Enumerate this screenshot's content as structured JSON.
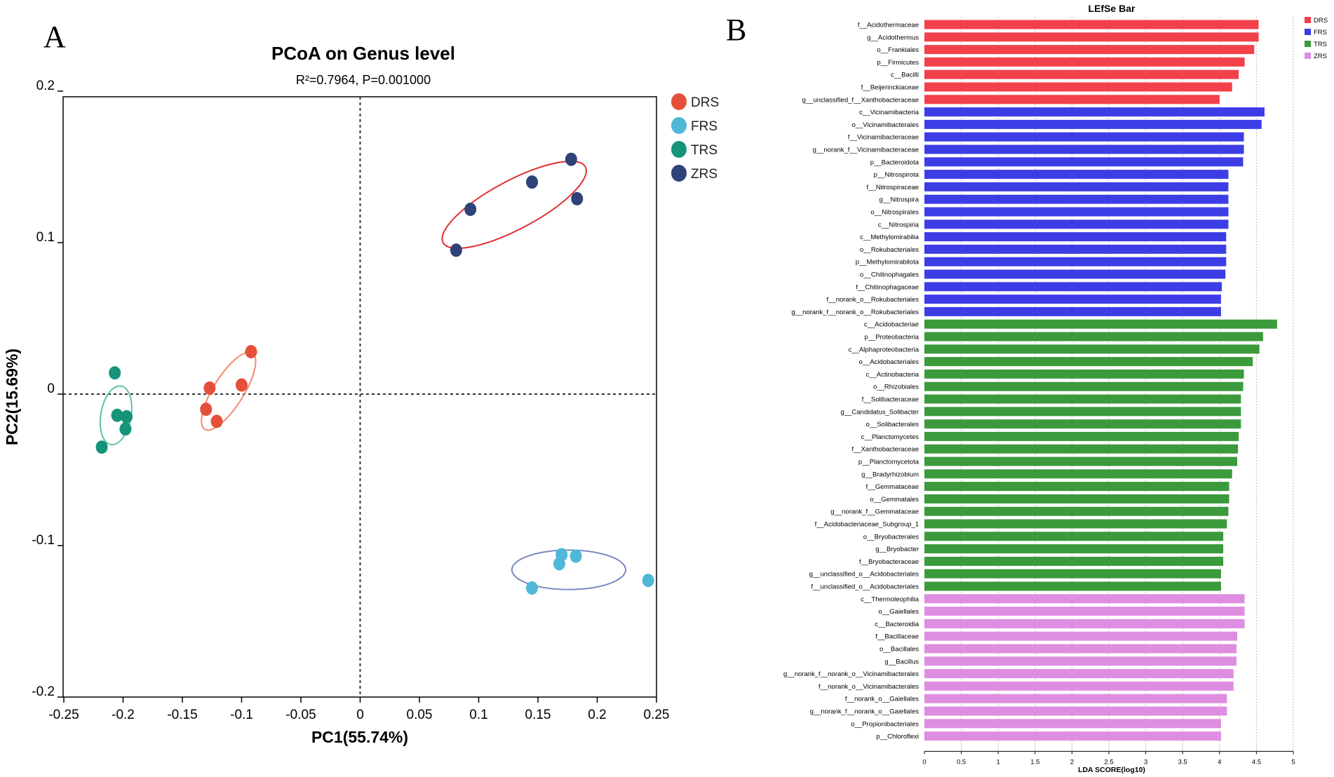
{
  "figure": {
    "panel_a_letter": "A",
    "panel_b_letter": "B"
  },
  "chart_data": [
    {
      "type": "scatter",
      "title": "PCoA on Genus level",
      "subtitle": "R²=0.7964, P=0.001000",
      "xlabel": "PC1(55.74%)",
      "ylabel": "PC2(15.69%)",
      "xlim": [
        -0.25,
        0.25
      ],
      "ylim": [
        -0.2,
        0.2
      ],
      "xticks": [
        -0.25,
        -0.2,
        -0.15,
        -0.1,
        -0.05,
        0,
        0.05,
        0.1,
        0.15,
        0.2,
        0.25
      ],
      "xtick_labels": [
        "-0.25",
        "-0.2",
        "-0.15",
        "-0.1",
        "-0.05",
        "0",
        "0.05",
        "0.1",
        "0.15",
        "0.2",
        "0.25"
      ],
      "yticks": [
        0.2,
        0.1,
        0,
        -0.1,
        -0.2
      ],
      "ytick_labels": [
        "0.2",
        "0.1",
        "0",
        "-0.1",
        "-0.2"
      ],
      "zero_lines": true,
      "legend_position": "top-right outside",
      "series": [
        {
          "name": "DRS",
          "color": "#e5503a",
          "points": [
            [
              -0.092,
              0.028
            ],
            [
              -0.1,
              0.006
            ],
            [
              -0.127,
              0.004
            ],
            [
              -0.13,
              -0.01
            ],
            [
              -0.121,
              -0.018
            ]
          ],
          "ellipse": {
            "cx": -0.111,
            "cy": 0.002,
            "rx": 0.038,
            "ry": 0.01,
            "angle_deg": -58,
            "color": "#f08a6e"
          }
        },
        {
          "name": "FRS",
          "color": "#4fb8d8",
          "points": [
            [
              0.17,
              -0.106
            ],
            [
              0.182,
              -0.107
            ],
            [
              0.168,
              -0.112
            ],
            [
              0.145,
              -0.128
            ],
            [
              0.243,
              -0.123
            ]
          ],
          "ellipse": {
            "cx": 0.176,
            "cy": -0.116,
            "rx": 0.048,
            "ry": 0.013,
            "angle_deg": 0,
            "color": "#7b88c2"
          }
        },
        {
          "name": "TRS",
          "color": "#16947a",
          "points": [
            [
              -0.207,
              0.014
            ],
            [
              -0.205,
              -0.014
            ],
            [
              -0.197,
              -0.015
            ],
            [
              -0.198,
              -0.023
            ],
            [
              -0.218,
              -0.035
            ]
          ],
          "ellipse": {
            "cx": -0.206,
            "cy": -0.014,
            "rx": 0.025,
            "ry": 0.01,
            "angle_deg": -80,
            "color": "#5ec2a0"
          }
        },
        {
          "name": "ZRS",
          "color": "#2e4377",
          "points": [
            [
              0.178,
              0.155
            ],
            [
              0.145,
              0.14
            ],
            [
              0.183,
              0.129
            ],
            [
              0.093,
              0.122
            ],
            [
              0.081,
              0.095
            ]
          ],
          "ellipse": {
            "cx": 0.13,
            "cy": 0.125,
            "rx": 0.068,
            "ry": 0.016,
            "angle_deg": -28,
            "color": "#e03030"
          }
        }
      ]
    },
    {
      "type": "bar",
      "orientation": "horizontal",
      "title": "LEfSe Bar",
      "xlabel": "LDA SCORE(log10)",
      "xlim": [
        0,
        5
      ],
      "xticks": [
        0,
        0.5,
        1,
        1.5,
        2,
        2.5,
        3,
        3.5,
        4,
        4.5,
        5
      ],
      "xtick_labels": [
        "0",
        "0.5",
        "1",
        "1.5",
        "2",
        "2.5",
        "3",
        "3.5",
        "4",
        "4.5",
        "5"
      ],
      "grid": "vertical dotted",
      "legend_position": "top-right",
      "groups": [
        {
          "name": "DRS",
          "color": "#f2414b"
        },
        {
          "name": "FRS",
          "color": "#3d3de6"
        },
        {
          "name": "TRS",
          "color": "#3b9a3b"
        },
        {
          "name": "ZRS",
          "color": "#dd8ee0"
        }
      ],
      "bars": [
        {
          "label": "f__Acidothermaceae",
          "value": 4.53,
          "group": "DRS"
        },
        {
          "label": "g__Acidothermus",
          "value": 4.53,
          "group": "DRS"
        },
        {
          "label": "o__Frankiales",
          "value": 4.47,
          "group": "DRS"
        },
        {
          "label": "p__Firmicutes",
          "value": 4.34,
          "group": "DRS"
        },
        {
          "label": "c__Bacilli",
          "value": 4.26,
          "group": "DRS"
        },
        {
          "label": "f__Beijerinckiaceae",
          "value": 4.17,
          "group": "DRS"
        },
        {
          "label": "g__unclassified_f__Xanthobacteraceae",
          "value": 4.0,
          "group": "DRS"
        },
        {
          "label": "c__Vicinamibacteria",
          "value": 4.61,
          "group": "FRS"
        },
        {
          "label": "o__Vicinamibacterales",
          "value": 4.57,
          "group": "FRS"
        },
        {
          "label": "f__Vicinamibacteraceae",
          "value": 4.33,
          "group": "FRS"
        },
        {
          "label": "g__norank_f__Vicinamibacteraceae",
          "value": 4.33,
          "group": "FRS"
        },
        {
          "label": "p__Bacteroidota",
          "value": 4.32,
          "group": "FRS"
        },
        {
          "label": "p__Nitrospirota",
          "value": 4.12,
          "group": "FRS"
        },
        {
          "label": "f__Nitrospiraceae",
          "value": 4.12,
          "group": "FRS"
        },
        {
          "label": "g__Nitrospira",
          "value": 4.12,
          "group": "FRS"
        },
        {
          "label": "o__Nitrospirales",
          "value": 4.12,
          "group": "FRS"
        },
        {
          "label": "c__Nitrospiria",
          "value": 4.12,
          "group": "FRS"
        },
        {
          "label": "c__Methylomirabilia",
          "value": 4.09,
          "group": "FRS"
        },
        {
          "label": "o__Rokubacteriales",
          "value": 4.09,
          "group": "FRS"
        },
        {
          "label": "p__Methylomirabilota",
          "value": 4.09,
          "group": "FRS"
        },
        {
          "label": "o__Chitinophagales",
          "value": 4.08,
          "group": "FRS"
        },
        {
          "label": "f__Chitinophagaceae",
          "value": 4.03,
          "group": "FRS"
        },
        {
          "label": "f__norank_o__Rokubacteriales",
          "value": 4.02,
          "group": "FRS"
        },
        {
          "label": "g__norank_f__norank_o__Rokubacteriales",
          "value": 4.02,
          "group": "FRS"
        },
        {
          "label": "c__Acidobacteriae",
          "value": 4.78,
          "group": "TRS"
        },
        {
          "label": "p__Proteobacteria",
          "value": 4.59,
          "group": "TRS"
        },
        {
          "label": "c__Alphaproteobacteria",
          "value": 4.54,
          "group": "TRS"
        },
        {
          "label": "o__Acidobacteriales",
          "value": 4.45,
          "group": "TRS"
        },
        {
          "label": "c__Actinobacteria",
          "value": 4.33,
          "group": "TRS"
        },
        {
          "label": "o__Rhizobiales",
          "value": 4.32,
          "group": "TRS"
        },
        {
          "label": "f__Solibacteraceae",
          "value": 4.29,
          "group": "TRS"
        },
        {
          "label": "g__Candidatus_Solibacter",
          "value": 4.29,
          "group": "TRS"
        },
        {
          "label": "o__Solibacterales",
          "value": 4.29,
          "group": "TRS"
        },
        {
          "label": "c__Planctomycetes",
          "value": 4.26,
          "group": "TRS"
        },
        {
          "label": "f__Xanthobacteraceae",
          "value": 4.25,
          "group": "TRS"
        },
        {
          "label": "p__Planctomycetota",
          "value": 4.24,
          "group": "TRS"
        },
        {
          "label": "g__Bradyrhizobium",
          "value": 4.17,
          "group": "TRS"
        },
        {
          "label": "f__Gemmataceae",
          "value": 4.13,
          "group": "TRS"
        },
        {
          "label": "o__Gemmatales",
          "value": 4.13,
          "group": "TRS"
        },
        {
          "label": "g__norank_f__Gemmataceae",
          "value": 4.12,
          "group": "TRS"
        },
        {
          "label": "f__Acidobacteriaceae_Subgroup_1",
          "value": 4.1,
          "group": "TRS"
        },
        {
          "label": "o__Bryobacterales",
          "value": 4.05,
          "group": "TRS"
        },
        {
          "label": "g__Bryobacter",
          "value": 4.05,
          "group": "TRS"
        },
        {
          "label": "f__Bryobacteraceae",
          "value": 4.05,
          "group": "TRS"
        },
        {
          "label": "g__unclassified_o__Acidobacteriales",
          "value": 4.02,
          "group": "TRS"
        },
        {
          "label": "f__unclassified_o__Acidobacteriales",
          "value": 4.02,
          "group": "TRS"
        },
        {
          "label": "c__Thermoleophilia",
          "value": 4.34,
          "group": "ZRS"
        },
        {
          "label": "o__Gaiellales",
          "value": 4.34,
          "group": "ZRS"
        },
        {
          "label": "c__Bacteroidia",
          "value": 4.34,
          "group": "ZRS"
        },
        {
          "label": "f__Bacillaceae",
          "value": 4.24,
          "group": "ZRS"
        },
        {
          "label": "o__Bacillales",
          "value": 4.23,
          "group": "ZRS"
        },
        {
          "label": "g__Bacillus",
          "value": 4.23,
          "group": "ZRS"
        },
        {
          "label": "g__norank_f__norank_o__Vicinamibacterales",
          "value": 4.19,
          "group": "ZRS"
        },
        {
          "label": "f__norank_o__Vicinamibacterales",
          "value": 4.19,
          "group": "ZRS"
        },
        {
          "label": "f__norank_o__Gaiellales",
          "value": 4.1,
          "group": "ZRS"
        },
        {
          "label": "g__norank_f__norank_o__Gaiellales",
          "value": 4.1,
          "group": "ZRS"
        },
        {
          "label": "o__Propionibacteriales",
          "value": 4.02,
          "group": "ZRS"
        },
        {
          "label": "p__Chloroflexi",
          "value": 4.02,
          "group": "ZRS"
        }
      ]
    }
  ]
}
